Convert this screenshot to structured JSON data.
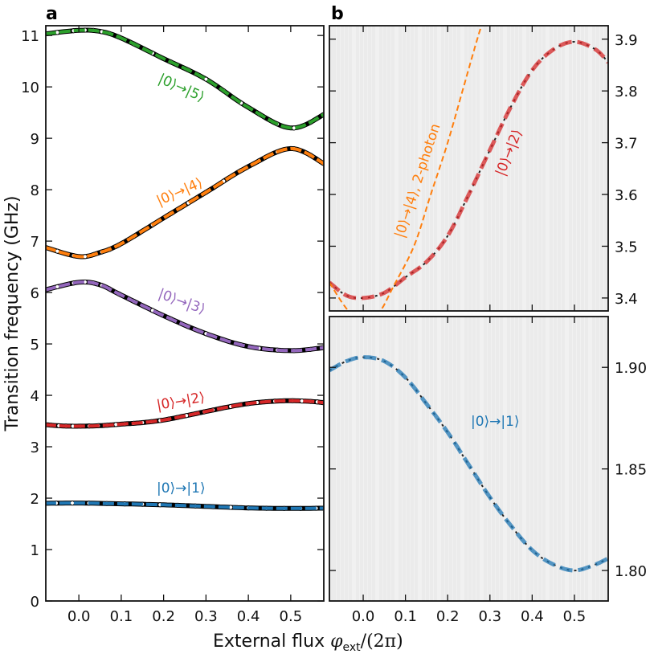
{
  "panel_labels": {
    "a": "a",
    "b": "b"
  },
  "axis_labels": {
    "y": "Transition frequency (GHz)",
    "x_text": "External flux ",
    "x_symbol": "φ",
    "x_sub": "ext",
    "x_tail": "/(2π)"
  },
  "colors": {
    "c01": "#1f77b4",
    "c02": "#d62728",
    "c03": "#9467bd",
    "c04": "#ff7f0e",
    "c05": "#2ca02c",
    "data": "#000000"
  },
  "chart_data": [
    {
      "panel": "a",
      "type": "line",
      "xlabel": "External flux φext/(2π)",
      "ylabel": "Transition frequency (GHz)",
      "xlim": [
        -0.078,
        0.578
      ],
      "ylim": [
        0,
        11.19
      ],
      "xticks": [
        "0.0",
        "0.1",
        "0.2",
        "0.3",
        "0.4",
        "0.5"
      ],
      "yticks": [
        "0",
        "1",
        "2",
        "3",
        "4",
        "5",
        "6",
        "7",
        "8",
        "9",
        "10",
        "11"
      ],
      "grid": false,
      "series": [
        {
          "name": "|0⟩→|1⟩",
          "color": "#1f77b4",
          "x": [
            -0.08,
            0,
            0.1,
            0.2,
            0.3,
            0.4,
            0.5,
            0.58
          ],
          "y": [
            1.9,
            1.905,
            1.89,
            1.87,
            1.84,
            1.81,
            1.8,
            1.806
          ]
        },
        {
          "name": "|0⟩→|2⟩",
          "color": "#d62728",
          "x": [
            -0.08,
            -0.04,
            0,
            0.05,
            0.1,
            0.15,
            0.2,
            0.25,
            0.3,
            0.35,
            0.4,
            0.45,
            0.5,
            0.55,
            0.58
          ],
          "y": [
            3.43,
            3.405,
            3.4,
            3.41,
            3.44,
            3.47,
            3.52,
            3.6,
            3.686,
            3.77,
            3.84,
            3.88,
            3.895,
            3.88,
            3.855
          ]
        },
        {
          "name": "|0⟩→|3⟩",
          "color": "#9467bd",
          "x": [
            -0.08,
            0,
            0.05,
            0.1,
            0.2,
            0.3,
            0.4,
            0.5,
            0.58
          ],
          "y": [
            6.05,
            6.2,
            6.15,
            5.95,
            5.55,
            5.2,
            4.95,
            4.87,
            4.93
          ]
        },
        {
          "name": "|0⟩→|4⟩",
          "color": "#ff7f0e",
          "x": [
            -0.08,
            0,
            0.05,
            0.1,
            0.2,
            0.3,
            0.4,
            0.5,
            0.58
          ],
          "y": [
            6.88,
            6.7,
            6.78,
            6.95,
            7.45,
            7.95,
            8.45,
            8.8,
            8.5
          ]
        },
        {
          "name": "|0⟩→|5⟩",
          "color": "#2ca02c",
          "x": [
            -0.08,
            0,
            0.05,
            0.1,
            0.2,
            0.3,
            0.4,
            0.5,
            0.58
          ],
          "y": [
            11.03,
            11.1,
            11.08,
            10.95,
            10.55,
            10.15,
            9.6,
            9.2,
            9.47
          ]
        }
      ]
    },
    {
      "panel": "b-top",
      "type": "heatmap",
      "xlim": [
        -0.08,
        0.58
      ],
      "ylim": [
        3.375,
        3.926
      ],
      "yticks": [
        "3.4",
        "3.5",
        "3.6",
        "3.7",
        "3.8",
        "3.9"
      ],
      "series": [
        {
          "name": "|0⟩→|2⟩",
          "color": "#d62728",
          "x": [
            -0.08,
            -0.04,
            0,
            0.05,
            0.1,
            0.15,
            0.2,
            0.25,
            0.3,
            0.35,
            0.4,
            0.45,
            0.5,
            0.55,
            0.58
          ],
          "y": [
            3.43,
            3.405,
            3.4,
            3.41,
            3.44,
            3.47,
            3.52,
            3.6,
            3.686,
            3.77,
            3.84,
            3.88,
            3.895,
            3.88,
            3.855
          ]
        },
        {
          "name": "|0⟩→|4⟩, 2-photon",
          "color": "#ff7f0e",
          "x": [
            -0.08,
            -0.04,
            0,
            0.04,
            0.07,
            0.12,
            0.16,
            0.2,
            0.235,
            0.27,
            0.29
          ],
          "y": [
            3.43,
            3.38,
            3.35,
            3.375,
            3.42,
            3.5,
            3.6,
            3.7,
            3.8,
            3.9,
            3.95
          ]
        }
      ]
    },
    {
      "panel": "b-bottom",
      "type": "heatmap",
      "xlim": [
        -0.08,
        0.58
      ],
      "ylim": [
        1.785,
        1.925
      ],
      "xticks": [
        "0.0",
        "0.1",
        "0.2",
        "0.3",
        "0.4",
        "0.5"
      ],
      "yticks": [
        "1.80",
        "1.85",
        "1.90"
      ],
      "series": [
        {
          "name": "|0⟩→|1⟩",
          "color": "#1f77b4",
          "x": [
            -0.08,
            -0.04,
            0,
            0.05,
            0.1,
            0.15,
            0.2,
            0.25,
            0.3,
            0.35,
            0.4,
            0.45,
            0.5,
            0.55,
            0.58
          ],
          "y": [
            1.8985,
            1.903,
            1.905,
            1.903,
            1.895,
            1.882,
            1.868,
            1.852,
            1.836,
            1.822,
            1.81,
            1.803,
            1.8,
            1.803,
            1.806
          ]
        }
      ]
    }
  ]
}
